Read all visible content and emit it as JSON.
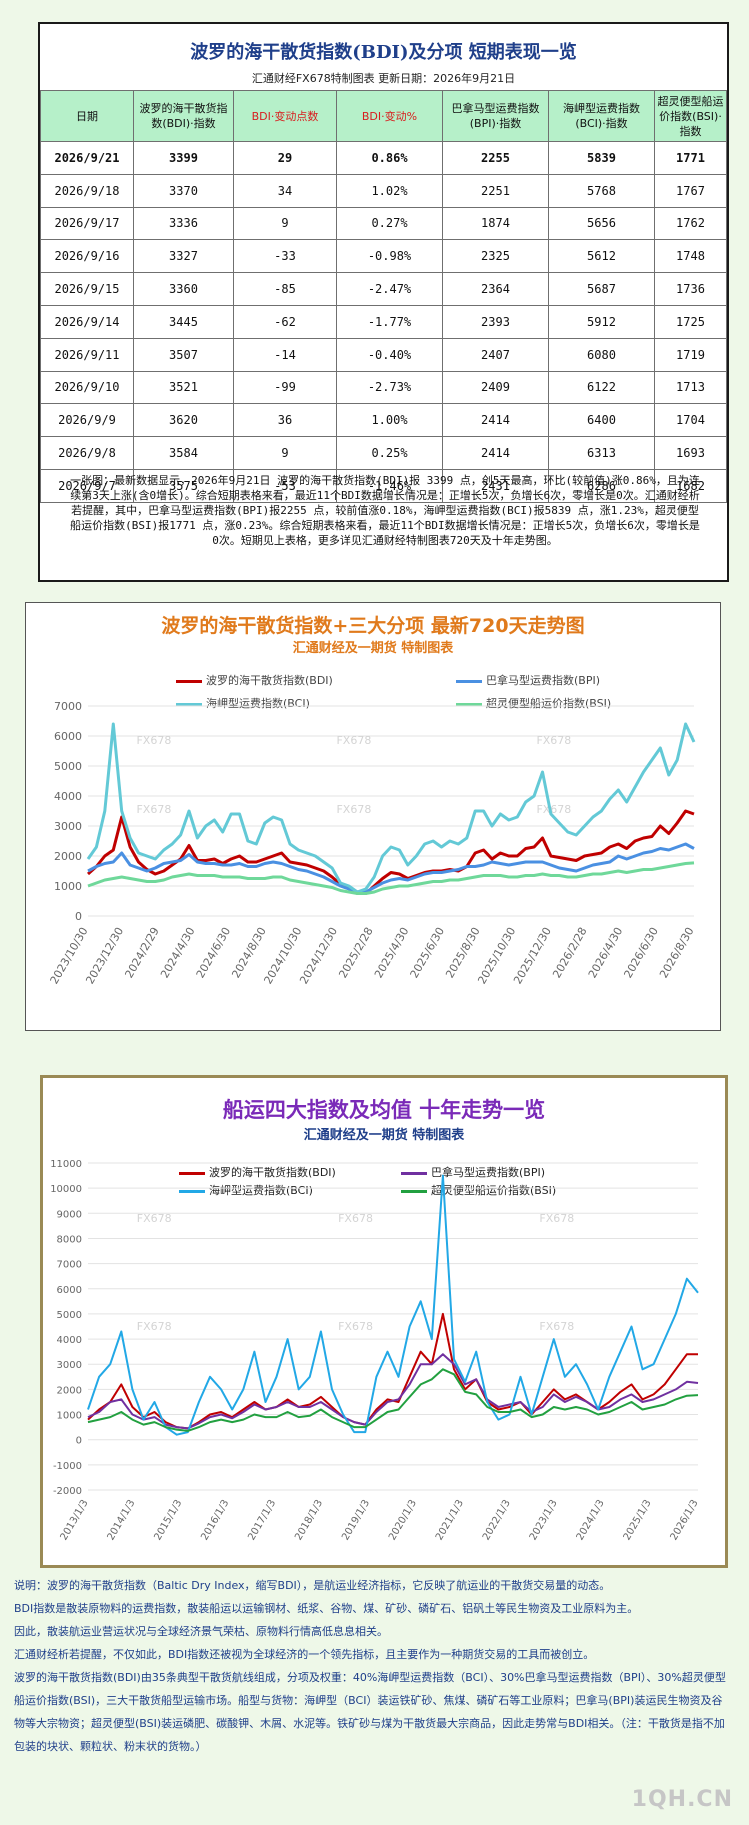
{
  "table_panel": {
    "title": "波罗的海干散货指数(BDI)及分项  短期表现一览",
    "subtitle": "汇通财经FX678特制图表      更新日期：2026年9月21日",
    "headers": [
      "日期",
      "波罗的海干散货指数(BDI)·指数",
      "BDI·变动点数",
      "BDI·变动%",
      "巴拿马型运费指数(BPI)·指数",
      "海岬型运费指数(BCI)·指数",
      "超灵便型船运价指数(BSI)·指数"
    ],
    "rows": [
      [
        "2026/9/21",
        "3399",
        "29",
        "0.86%",
        "2255",
        "5839",
        "1771"
      ],
      [
        "2026/9/18",
        "3370",
        "34",
        "1.02%",
        "2251",
        "5768",
        "1767"
      ],
      [
        "2026/9/17",
        "3336",
        "9",
        "0.27%",
        "1874",
        "5656",
        "1762"
      ],
      [
        "2026/9/16",
        "3327",
        "-33",
        "-0.98%",
        "2325",
        "5612",
        "1748"
      ],
      [
        "2026/9/15",
        "3360",
        "-85",
        "-2.47%",
        "2364",
        "5687",
        "1736"
      ],
      [
        "2026/9/14",
        "3445",
        "-62",
        "-1.77%",
        "2393",
        "5912",
        "1725"
      ],
      [
        "2026/9/11",
        "3507",
        "-14",
        "-0.40%",
        "2407",
        "6080",
        "1719"
      ],
      [
        "2026/9/10",
        "3521",
        "-99",
        "-2.73%",
        "2409",
        "6122",
        "1713"
      ],
      [
        "2026/9/9",
        "3620",
        "36",
        "1.00%",
        "2414",
        "6400",
        "1704"
      ],
      [
        "2026/9/8",
        "3584",
        "9",
        "0.25%",
        "2414",
        "6313",
        "1693"
      ],
      [
        "2026/9/7",
        "3575",
        "-53",
        "-1.46%",
        "2431",
        "6286",
        "1682"
      ]
    ],
    "summary": "一张图：最新数据显示，2026年9月21日 波罗的海干散货指数(BDI)报 3399 点，创5天最高，环比(较前值)涨0.86%，且为连续第3天上涨(含0增长)。综合短期表格来看，最近11个BDI数据增长情况是：正增长5次，负增长6次，零增长是0次。汇通财经析若提醒，其中，巴拿马型运费指数(BPI)报2255 点，较前值涨0.18%，海岬型运费指数(BCI)报5839 点，涨1.23%，超灵便型船运价指数(BSI)报1771 点，涨0.23%。综合短期表格来看，最近11个BDI数据增长情况是：正增长5次，负增长6次，零增长是0次。短期见上表格，更多详见汇通财经特制图表720天及十年走势图。"
  },
  "colors": {
    "bdi": "#c00000",
    "bpi": "#4a90e2",
    "bci": "#63c9d6",
    "bsi": "#6fd89a",
    "bci_10y": "#22a8e6",
    "bpi_10y": "#7030a0",
    "bsi_10y": "#22a040"
  },
  "chart_data": [
    {
      "type": "line",
      "title": "波罗的海干散货指数+三大分项  最新720天走势图",
      "subtitle": "汇通财经及一期货  特制图表",
      "ylim": [
        0,
        7000
      ],
      "yticks": [
        "0",
        "1000",
        "2000",
        "3000",
        "4000",
        "5000",
        "6000",
        "7000"
      ],
      "xticks": [
        "2023/10/30",
        "2023/12/30",
        "2024/2/29",
        "2024/4/30",
        "2024/6/30",
        "2024/8/30",
        "2024/10/30",
        "2024/12/30",
        "2025/2/28",
        "2025/4/30",
        "2025/6/30",
        "2025/8/30",
        "2025/10/30",
        "2025/12/30",
        "2026/2/28",
        "2026/4/30",
        "2026/6/30",
        "2026/8/30"
      ],
      "grid": true,
      "legend": "top",
      "watermarks": [
        "FX678",
        "FX678",
        "FX678",
        "FX678",
        "FX678",
        "FX678"
      ],
      "series": [
        {
          "name": "波罗的海干散货指数(BDI)",
          "key": "bdi",
          "values": [
            1400,
            1650,
            2000,
            2200,
            3300,
            2300,
            1800,
            1550,
            1400,
            1500,
            1700,
            1900,
            2350,
            1850,
            1850,
            1900,
            1750,
            1900,
            2000,
            1800,
            1800,
            1900,
            2000,
            2100,
            1800,
            1750,
            1700,
            1600,
            1500,
            1300,
            1050,
            950,
            800,
            750,
            1000,
            1250,
            1450,
            1400,
            1250,
            1350,
            1450,
            1500,
            1500,
            1550,
            1500,
            1650,
            2100,
            2200,
            1900,
            2100,
            2000,
            2000,
            2250,
            2300,
            2600,
            2000,
            1950,
            1900,
            1850,
            2000,
            2050,
            2100,
            2300,
            2400,
            2250,
            2500,
            2600,
            2650,
            3000,
            2750,
            3100,
            3500,
            3400
          ]
        },
        {
          "name": "巴拿马型运费指数(BPI)",
          "key": "bpi",
          "values": [
            1500,
            1650,
            1750,
            1800,
            2100,
            1700,
            1600,
            1500,
            1600,
            1750,
            1800,
            1850,
            2050,
            1800,
            1750,
            1750,
            1700,
            1700,
            1750,
            1650,
            1650,
            1750,
            1800,
            1750,
            1650,
            1550,
            1500,
            1400,
            1300,
            1150,
            1000,
            900,
            750,
            800,
            950,
            1100,
            1200,
            1250,
            1200,
            1300,
            1400,
            1450,
            1450,
            1500,
            1550,
            1650,
            1650,
            1700,
            1800,
            1750,
            1700,
            1750,
            1800,
            1800,
            1800,
            1700,
            1600,
            1550,
            1500,
            1600,
            1700,
            1750,
            1800,
            2000,
            1900,
            2000,
            2100,
            2150,
            2250,
            2200,
            2300,
            2400,
            2250
          ]
        },
        {
          "name": "海岬型运费指数(BCI)",
          "key": "bci",
          "values": [
            1900,
            2300,
            3500,
            6400,
            3500,
            2600,
            2100,
            2000,
            1900,
            2200,
            2400,
            2700,
            3500,
            2600,
            3000,
            3200,
            2800,
            3400,
            3400,
            2500,
            2400,
            3100,
            3300,
            3200,
            2400,
            2200,
            2100,
            2000,
            1800,
            1600,
            1100,
            1000,
            800,
            900,
            1300,
            2000,
            2300,
            2200,
            1700,
            2000,
            2400,
            2500,
            2300,
            2500,
            2400,
            2600,
            3500,
            3500,
            3000,
            3400,
            3200,
            3300,
            3800,
            4000,
            4800,
            3400,
            3100,
            2800,
            2700,
            3000,
            3300,
            3500,
            3900,
            4200,
            3800,
            4300,
            4800,
            5200,
            5600,
            4700,
            5200,
            6400,
            5800
          ]
        },
        {
          "name": "超灵便型船运价指数(BSI)",
          "key": "bsi",
          "values": [
            1000,
            1100,
            1200,
            1250,
            1300,
            1250,
            1200,
            1150,
            1150,
            1200,
            1300,
            1350,
            1400,
            1350,
            1350,
            1350,
            1300,
            1300,
            1300,
            1250,
            1250,
            1250,
            1300,
            1300,
            1200,
            1150,
            1100,
            1050,
            1000,
            950,
            850,
            800,
            750,
            750,
            800,
            900,
            950,
            1000,
            1000,
            1050,
            1100,
            1150,
            1150,
            1200,
            1200,
            1250,
            1300,
            1350,
            1350,
            1350,
            1300,
            1300,
            1350,
            1350,
            1400,
            1350,
            1350,
            1300,
            1300,
            1350,
            1400,
            1400,
            1450,
            1500,
            1450,
            1500,
            1550,
            1550,
            1600,
            1650,
            1700,
            1750,
            1771
          ]
        }
      ]
    },
    {
      "type": "line",
      "title": "船运四大指数及均值 十年走势一览",
      "subtitle": "汇通财经及一期货 特制图表",
      "ylim": [
        -2000,
        11000
      ],
      "yticks": [
        "-2000",
        "-1000",
        "0",
        "1000",
        "2000",
        "3000",
        "4000",
        "5000",
        "6000",
        "7000",
        "8000",
        "9000",
        "10000",
        "11000"
      ],
      "xticks": [
        "2013/1/3",
        "2014/1/3",
        "2015/1/3",
        "2016/1/3",
        "2017/1/3",
        "2018/1/3",
        "2019/1/3",
        "2020/1/3",
        "2021/1/3",
        "2022/1/3",
        "2023/1/3",
        "2024/1/3",
        "2025/1/3",
        "2026/1/3"
      ],
      "grid": true,
      "legend": "top",
      "watermarks": [
        "FX678",
        "FX678",
        "FX678",
        "FX678",
        "FX678",
        "FX678"
      ],
      "series": [
        {
          "name": "波罗的海干散货指数(BDI)",
          "key": "bdi",
          "values": [
            800,
            1200,
            1500,
            2200,
            1300,
            900,
            1100,
            700,
            500,
            450,
            700,
            1000,
            1100,
            900,
            1200,
            1500,
            1200,
            1300,
            1600,
            1300,
            1400,
            1700,
            1300,
            900,
            700,
            600,
            1200,
            1600,
            1500,
            2500,
            3500,
            3000,
            5000,
            2800,
            2000,
            2400,
            1500,
            1200,
            1300,
            1500,
            1000,
            1500,
            2000,
            1600,
            1800,
            1500,
            1200,
            1500,
            1900,
            2200,
            1600,
            1800,
            2200,
            2800,
            3400,
            3400
          ]
        },
        {
          "name": "巴拿马型运费指数(BPI)",
          "key": "bpi",
          "values": [
            900,
            1100,
            1500,
            1600,
            1000,
            800,
            900,
            600,
            500,
            450,
            650,
            900,
            1000,
            850,
            1100,
            1400,
            1200,
            1300,
            1500,
            1300,
            1300,
            1500,
            1200,
            900,
            700,
            600,
            1100,
            1500,
            1600,
            2200,
            3000,
            3000,
            3400,
            3000,
            2200,
            2400,
            1600,
            1300,
            1400,
            1500,
            1100,
            1300,
            1800,
            1500,
            1700,
            1500,
            1200,
            1300,
            1600,
            1800,
            1500,
            1600,
            1800,
            2000,
            2300,
            2255
          ]
        },
        {
          "name": "海岬型运费指数(BCI)",
          "key": "bci",
          "values": [
            1200,
            2500,
            3000,
            4300,
            2000,
            800,
            1500,
            500,
            200,
            300,
            1500,
            2500,
            2000,
            1200,
            2000,
            3500,
            1500,
            2500,
            4000,
            2000,
            2500,
            4300,
            2000,
            1000,
            300,
            300,
            2500,
            3500,
            2500,
            4500,
            5500,
            4000,
            10500,
            3200,
            2300,
            3500,
            1500,
            800,
            1000,
            2500,
            1000,
            2500,
            4000,
            2500,
            3000,
            2200,
            1200,
            2500,
            3500,
            4500,
            2800,
            3000,
            4000,
            5000,
            6400,
            5839
          ]
        },
        {
          "name": "超灵便型船运价指数(BSI)",
          "key": "bsi",
          "values": [
            700,
            800,
            900,
            1100,
            800,
            600,
            700,
            500,
            400,
            350,
            500,
            700,
            800,
            700,
            800,
            1000,
            900,
            900,
            1100,
            900,
            950,
            1200,
            900,
            700,
            500,
            500,
            800,
            1100,
            1200,
            1700,
            2200,
            2400,
            2800,
            2600,
            1900,
            1800,
            1300,
            1100,
            1100,
            1200,
            900,
            1000,
            1300,
            1200,
            1300,
            1200,
            1000,
            1100,
            1300,
            1500,
            1200,
            1300,
            1400,
            1600,
            1750,
            1771
          ]
        }
      ]
    }
  ],
  "notes": [
    "说明：波罗的海干散货指数（Baltic Dry Index，缩写BDI），是航运业经济指标，它反映了航运业的干散货交易量的动态。",
    "BDI指数是散装原物料的运费指数，散装船运以运输钢材、纸浆、谷物、煤、矿砂、磷矿石、铝矾土等民生物资及工业原料为主。",
    "因此，散装航运业营运状况与全球经济景气荣枯、原物料行情高低息息相关。",
    "汇通财经析若提醒，不仅如此，BDI指数还被视为全球经济的一个领先指标，且主要作为一种期货交易的工具而被创立。",
    "波罗的海干散货指数(BDI)由35条典型干散货航线组成，分项及权重：40%海岬型运费指数（BCI）、30%巴拿马型运费指数（BPI）、30%超灵便型船运价指数(BSI)，三大干散货船型运输市场。船型与货物：海岬型（BCI）装运铁矿砂、焦煤、磷矿石等工业原料；巴拿马(BPI)装运民生物资及谷物等大宗物资；超灵便型(BSI)装运磷肥、碳酸钾、木屑、水泥等。铁矿砂与煤为干散货最大宗商品，因此走势常与BDI相关。（注：干散货是指不加包装的块状、颗粒状、粉末状的货物。）"
  ],
  "footer": {
    "logo": "1QH.CN"
  }
}
